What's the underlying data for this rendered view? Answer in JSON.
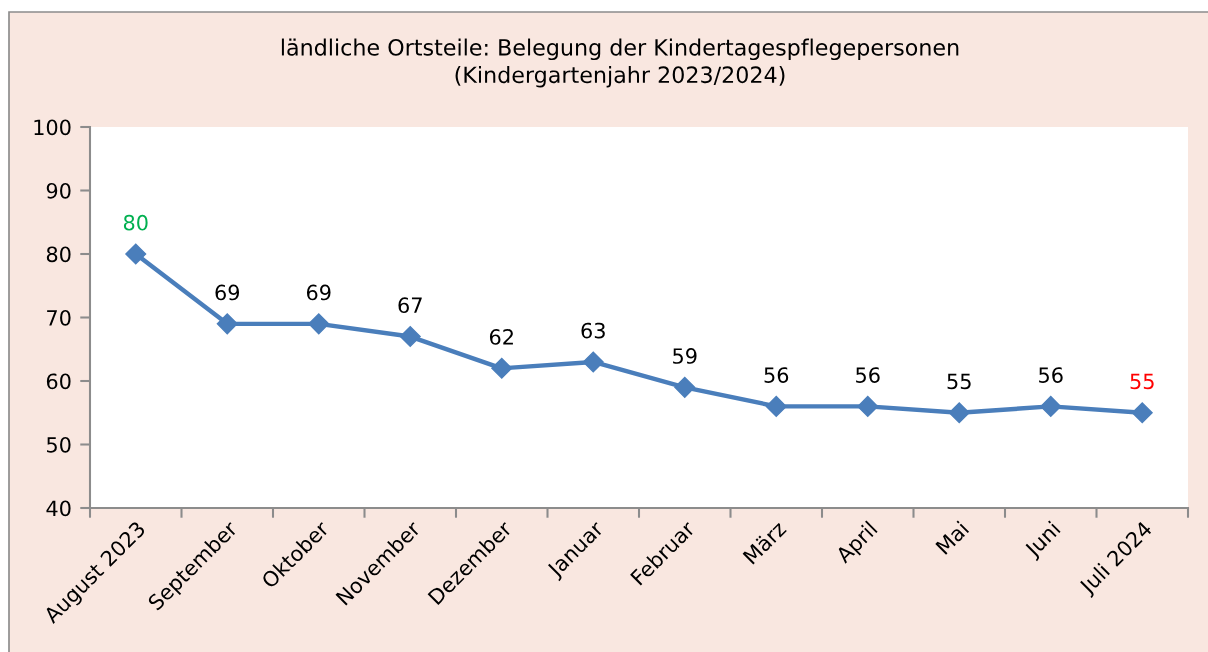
{
  "chart_data": {
    "type": "line",
    "title": "ländliche Ortsteile: Belegung der Kindertagespflegepersonen\n(Kindergartenjahr 2023/2024)",
    "categories": [
      "August 2023",
      "September",
      "Oktober",
      "November",
      "Dezember",
      "Januar",
      "Februar",
      "März",
      "April",
      "Mai",
      "Juni",
      "Juli 2024"
    ],
    "series": [
      {
        "color": "#4a7ebb",
        "values": [
          80,
          69,
          69,
          67,
          62,
          63,
          59,
          56,
          56,
          55,
          56,
          55
        ]
      }
    ],
    "ylim": [
      40,
      100
    ],
    "yticks": [
      40,
      50,
      60,
      70,
      80,
      90,
      100
    ],
    "marker": "diamond",
    "line_style": "solid",
    "data_labels": true
  }
}
